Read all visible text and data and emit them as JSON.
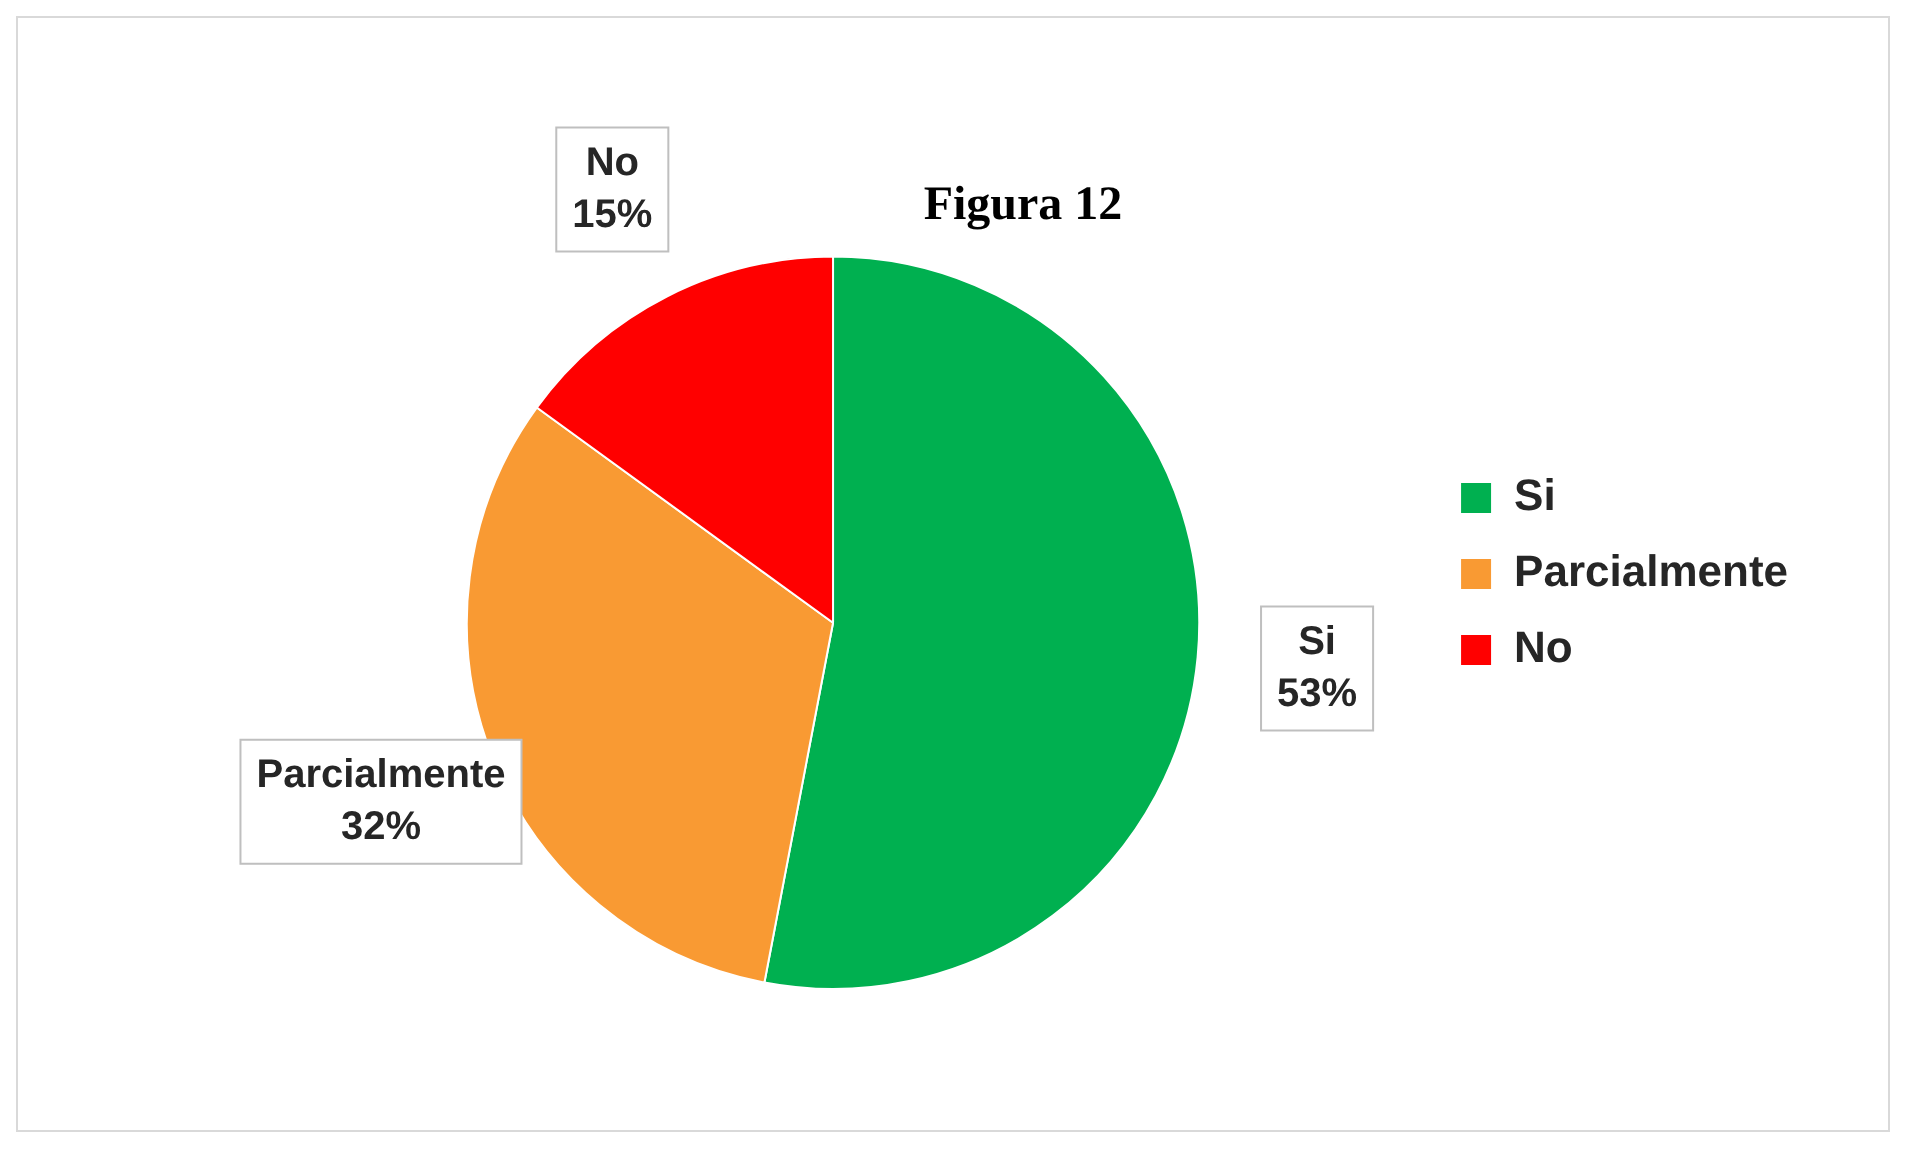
{
  "chart_data": {
    "type": "pie",
    "title": "Figura 12",
    "categories": [
      "Si",
      "Parcialmente",
      "No"
    ],
    "values": [
      53,
      32,
      15
    ],
    "colors": [
      "#00b050",
      "#f99a33",
      "#ff0000"
    ],
    "value_labels": [
      "53%",
      "32%",
      "15%"
    ],
    "legend": "right"
  }
}
